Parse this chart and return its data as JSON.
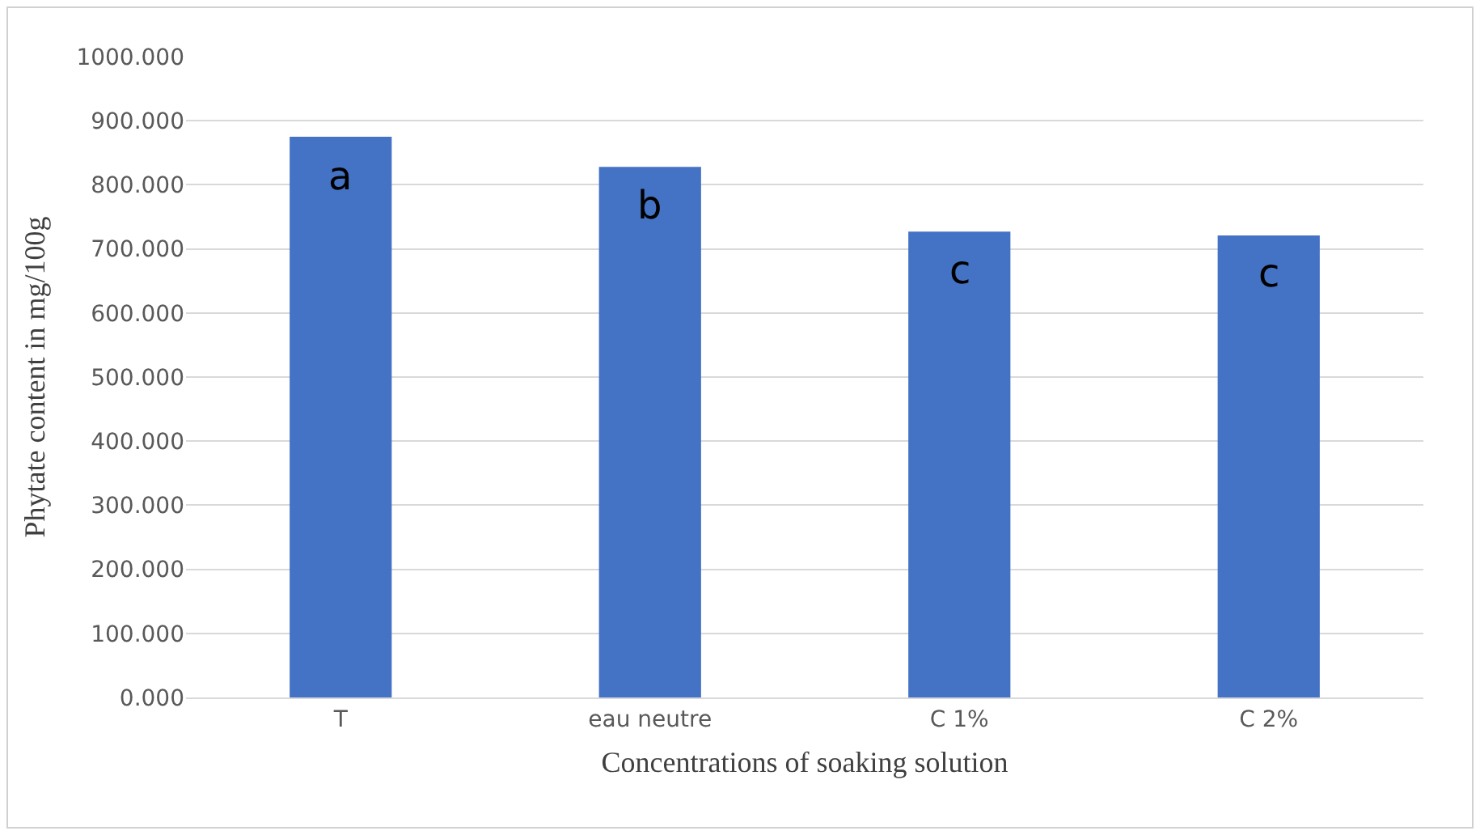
{
  "chart_data": {
    "type": "bar",
    "xlabel": "Concentrations of soaking solution",
    "ylabel": "Phytate content in mg/100g",
    "categories": [
      "T",
      "eau neutre",
      "C 1%",
      "C 2%"
    ],
    "values": [
      875,
      828,
      727,
      721
    ],
    "color": "#4472c4",
    "ylim": [
      0,
      1000
    ],
    "yticks": [
      {
        "value": 0,
        "label": "0.000"
      },
      {
        "value": 100,
        "label": "100.000"
      },
      {
        "value": 200,
        "label": "200.000"
      },
      {
        "value": 300,
        "label": "300.000"
      },
      {
        "value": 400,
        "label": "400.000"
      },
      {
        "value": 500,
        "label": "500.000"
      },
      {
        "value": 600,
        "label": "600.000"
      },
      {
        "value": 700,
        "label": "700.000"
      },
      {
        "value": 800,
        "label": "800.000"
      },
      {
        "value": 900,
        "label": "900.000"
      },
      {
        "value": 1000,
        "label": "1000.000"
      }
    ],
    "grid": "y",
    "annotations": [
      "a",
      "b",
      "c",
      "c"
    ]
  }
}
